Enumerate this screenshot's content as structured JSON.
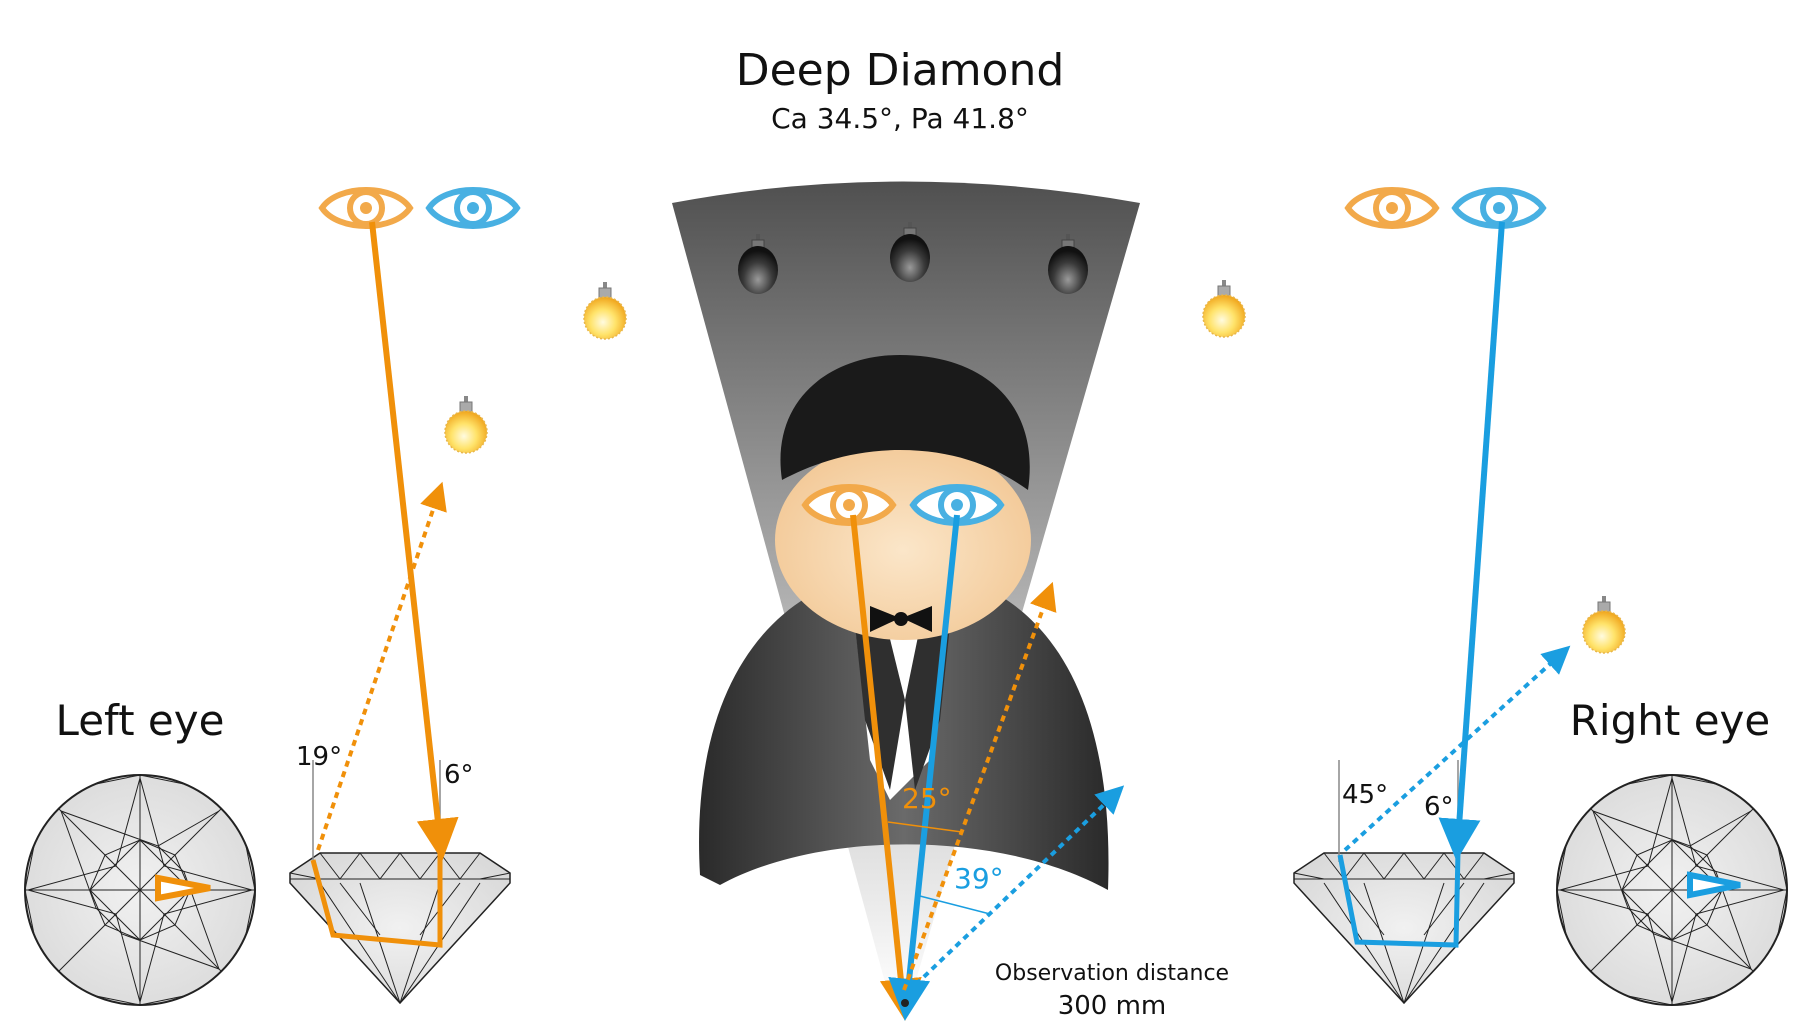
{
  "title": "Deep Diamond",
  "subtitle": "Ca 34.5°, Pa 41.8°",
  "left_label": "Left eye",
  "right_label": "Right eye",
  "angles": {
    "left_orange": "19°",
    "left_vertical": "6°",
    "center_orange": "25°",
    "center_blue": "39°",
    "right_blue": "45°",
    "right_vertical": "6°"
  },
  "observation": {
    "label": "Observation distance",
    "value": "300 mm"
  },
  "colors": {
    "orange": "#F0900A",
    "blue": "#1A9EE0",
    "eye_orange": "#F2A94A",
    "eye_blue": "#48B0E2"
  },
  "icons": [
    "eye-icon",
    "light-bulb-icon",
    "dark-bulb-icon",
    "bow-tie-icon"
  ]
}
